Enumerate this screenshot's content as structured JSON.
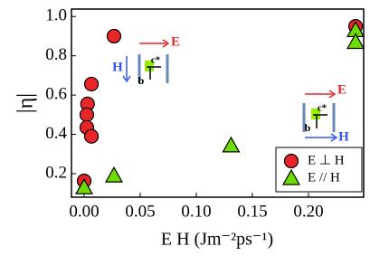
{
  "chart_data": {
    "type": "scatter",
    "x_label": "E H (Jm⁻²ps⁻¹)",
    "y_label": "|η|",
    "xlim": [
      -0.0113,
      0.2492
    ],
    "ylim": [
      0.08,
      1.038
    ],
    "xticks": [
      {
        "value": 0,
        "label": "0.00"
      },
      0.05,
      {
        "value": 0.1,
        "label": "0.10"
      },
      0.15,
      {
        "value": 0.2,
        "label": "0.20"
      }
    ],
    "yticks": [
      0.2,
      0.4,
      0.6,
      0.8,
      {
        "value": 1.0,
        "label": "1.0"
      }
    ],
    "legend": "lower right",
    "series": [
      {
        "name": "E ⊥ H",
        "marker": "circle",
        "color": "#e8262a",
        "x": [
          0,
          0.003,
          0.0024,
          0.0024,
          0.0065,
          0.0065,
          0.0266,
          0.242
        ],
        "values": [
          0.163,
          0.555,
          0.5,
          0.435,
          0.39,
          0.656,
          0.9,
          0.95
        ]
      },
      {
        "name": "E // H",
        "marker": "triangle",
        "color": "#6fdc00",
        "x": [
          0,
          0.0266,
          0.131,
          0.242,
          0.242
        ],
        "values": [
          0.13,
          0.19,
          0.343,
          0.93,
          0.87
        ]
      }
    ],
    "annotations": [
      "E",
      "H",
      "c*",
      "b",
      "E",
      "H",
      "c*",
      "b"
    ]
  }
}
